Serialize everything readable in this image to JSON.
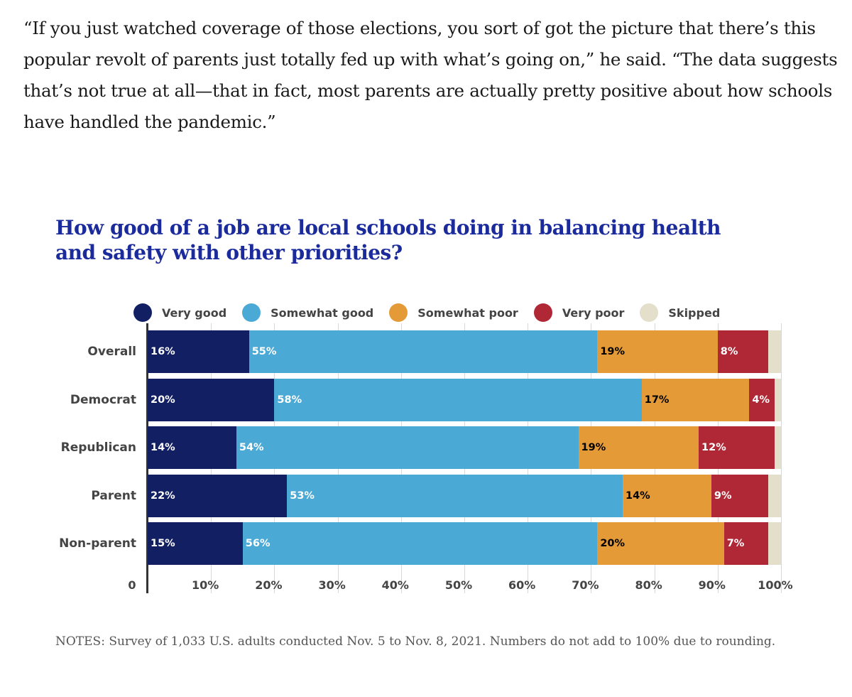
{
  "article": {
    "quote": "“If you just watched coverage of those elections, you sort of got the picture that there’s this popular revolt of parents just totally fed up with what’s going on,” he said. “The data suggests that’s not true at all—that in fact, most parents are actually pretty positive about how schools have handled the pandemic.”"
  },
  "chart_data": {
    "type": "bar",
    "orientation": "horizontal-stacked",
    "title": "How good of a job are local schools doing in balancing health and safety with other priorities?",
    "categories": [
      "Overall",
      "Democrat",
      "Republican",
      "Parent",
      "Non-parent"
    ],
    "series": [
      {
        "name": "Very good",
        "color": "#121f63",
        "label_color": "#ffffff",
        "values": [
          16,
          20,
          14,
          22,
          15
        ]
      },
      {
        "name": "Somewhat good",
        "color": "#4ba9d5",
        "label_color": "#ffffff",
        "values": [
          55,
          58,
          54,
          53,
          56
        ]
      },
      {
        "name": "Somewhat poor",
        "color": "#e49a37",
        "label_color": "#000000",
        "values": [
          19,
          17,
          19,
          14,
          20
        ]
      },
      {
        "name": "Very poor",
        "color": "#b02735",
        "label_color": "#ffffff",
        "values": [
          8,
          4,
          12,
          9,
          7
        ]
      },
      {
        "name": "Skipped",
        "color": "#e4dfca",
        "label_color": "#000000",
        "values": [
          2,
          1,
          1,
          2,
          2
        ]
      }
    ],
    "xlim": [
      0,
      100
    ],
    "xticks": [
      "0",
      "10%",
      "20%",
      "30%",
      "40%",
      "50%",
      "60%",
      "70%",
      "80%",
      "90%",
      "100%"
    ],
    "grid": true,
    "legend_position": "top",
    "notes": "NOTES: Survey of 1,033 U.S. adults conducted Nov. 5 to Nov. 8, 2021. Numbers do not add to 100% due to rounding."
  }
}
